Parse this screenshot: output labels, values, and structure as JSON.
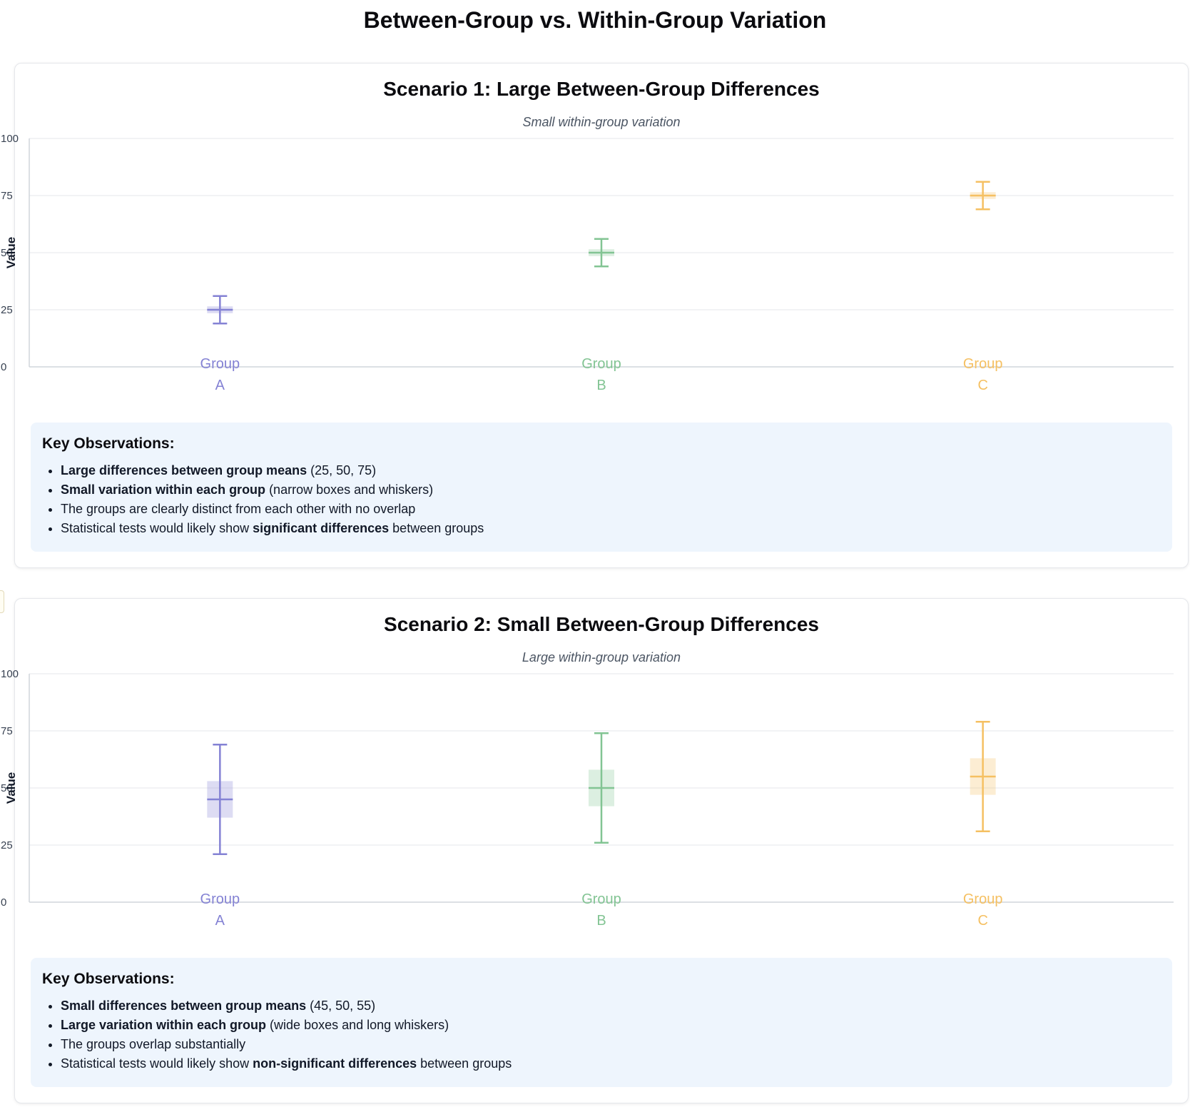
{
  "page_title": "Between-Group vs. Within-Group Variation",
  "colors": {
    "group_a": "#8482d4",
    "group_b": "#82c493",
    "group_c": "#f5c062"
  },
  "scenarios": [
    {
      "title": "Scenario 1: Large Between-Group Differences",
      "subtitle": "Small within-group variation",
      "observations_title": "Key Observations:",
      "observations": [
        {
          "bold": "Large differences between group means",
          "rest": " (25, 50, 75)",
          "pre": ""
        },
        {
          "bold": "Small variation within each group",
          "rest": " (narrow boxes and whiskers)",
          "pre": ""
        },
        {
          "pre": "The groups are clearly distinct from each other with no overlap",
          "bold": "",
          "rest": ""
        },
        {
          "pre": "Statistical tests would likely show ",
          "bold": "significant differences",
          "rest": " between groups"
        }
      ]
    },
    {
      "title": "Scenario 2: Small Between-Group Differences",
      "subtitle": "Large within-group variation",
      "observations_title": "Key Observations:",
      "observations": [
        {
          "bold": "Small differences between group means",
          "rest": " (45, 50, 55)",
          "pre": ""
        },
        {
          "bold": "Large variation within each group",
          "rest": " (wide boxes and long whiskers)",
          "pre": ""
        },
        {
          "pre": "The groups overlap substantially",
          "bold": "",
          "rest": ""
        },
        {
          "pre": "Statistical tests would likely show ",
          "bold": "non-significant differences",
          "rest": " between groups"
        }
      ]
    }
  ],
  "chart_data": [
    {
      "type": "box",
      "ylabel": "Value",
      "ylim": [
        0,
        100
      ],
      "yticks": [
        0,
        25,
        50,
        75,
        100
      ],
      "grid": true,
      "categories": [
        "Group A",
        "Group B",
        "Group C"
      ],
      "series": [
        {
          "category": "Group A",
          "color": "#8482d4",
          "median": 25,
          "q1": 23.5,
          "q3": 26.5,
          "whisker_low": 19,
          "whisker_high": 31
        },
        {
          "category": "Group B",
          "color": "#82c493",
          "median": 50,
          "q1": 48.5,
          "q3": 51.5,
          "whisker_low": 44,
          "whisker_high": 56
        },
        {
          "category": "Group C",
          "color": "#f5c062",
          "median": 75,
          "q1": 73.5,
          "q3": 76.5,
          "whisker_low": 69,
          "whisker_high": 81
        }
      ]
    },
    {
      "type": "box",
      "ylabel": "Value",
      "ylim": [
        0,
        100
      ],
      "yticks": [
        0,
        25,
        50,
        75,
        100
      ],
      "grid": true,
      "categories": [
        "Group A",
        "Group B",
        "Group C"
      ],
      "series": [
        {
          "category": "Group A",
          "color": "#8482d4",
          "median": 45,
          "q1": 37,
          "q3": 53,
          "whisker_low": 21,
          "whisker_high": 69
        },
        {
          "category": "Group B",
          "color": "#82c493",
          "median": 50,
          "q1": 42,
          "q3": 58,
          "whisker_low": 26,
          "whisker_high": 74
        },
        {
          "category": "Group C",
          "color": "#f5c062",
          "median": 55,
          "q1": 47,
          "q3": 63,
          "whisker_low": 31,
          "whisker_high": 79
        }
      ]
    }
  ]
}
